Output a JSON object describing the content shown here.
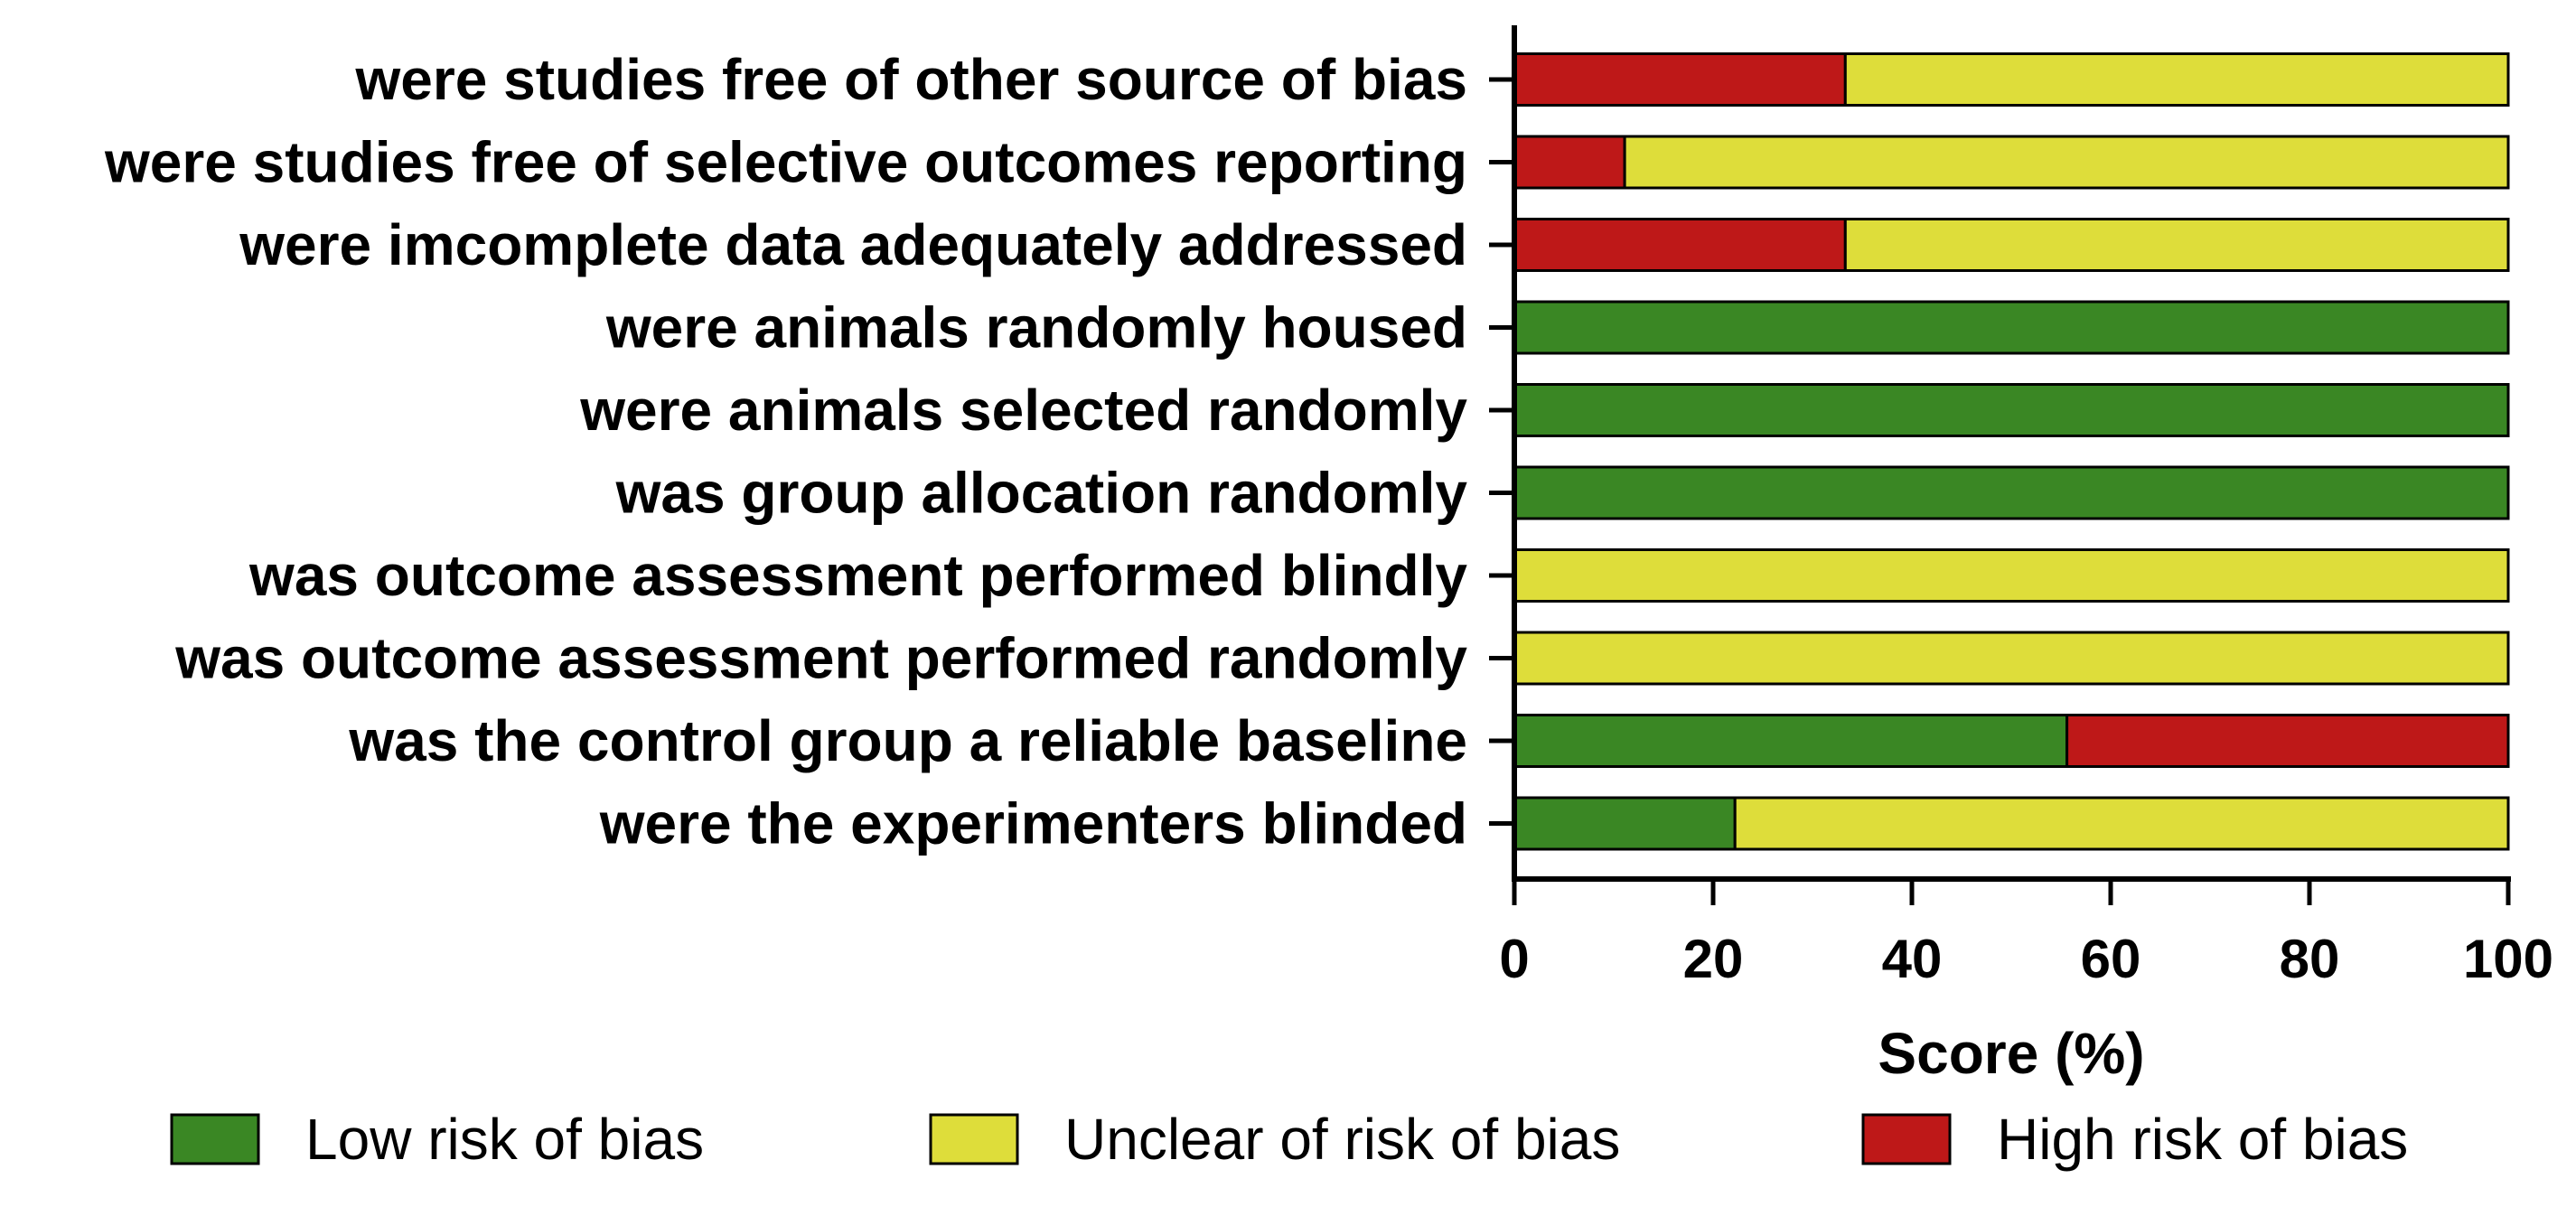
{
  "chart_data": {
    "type": "bar",
    "orientation": "horizontal",
    "stacked": true,
    "title": "",
    "xlabel": "Score (%)",
    "ylabel": "",
    "xlim": [
      0,
      100
    ],
    "xticks": [
      "0",
      "20",
      "40",
      "60",
      "80",
      "100"
    ],
    "categories": [
      "were studies free of other source of bias",
      "were studies free of selective outcomes reporting",
      "were imcomplete data adequately addressed",
      "were animals randomly housed",
      "were animals selected randomly",
      "was group allocation randomly",
      "was outcome assessment performed blindly",
      "was outcome assessment performed randomly",
      "was the control group a reliable baseline",
      "were the experimenters blinded"
    ],
    "series": [
      {
        "name": "Low risk of bias",
        "color": "#3a8724",
        "values": [
          0,
          0,
          0,
          100,
          100,
          100,
          0,
          0,
          55.6,
          22.2
        ]
      },
      {
        "name": "High risk of bias",
        "color": "#be1818",
        "values": [
          33.3,
          11.1,
          33.3,
          0,
          0,
          0,
          0,
          0,
          44.4,
          0
        ]
      },
      {
        "name": "Unclear of risk of bias",
        "color": "#dedd3a",
        "values": [
          66.7,
          88.9,
          66.7,
          0,
          0,
          0,
          100,
          100,
          0,
          77.8
        ]
      }
    ],
    "legend": {
      "position": "bottom",
      "items": [
        {
          "label": "Low risk of bias",
          "color": "#3a8724"
        },
        {
          "label": "Unclear of risk of bias",
          "color": "#dedd3a"
        },
        {
          "label": "High risk of bias",
          "color": "#be1818"
        }
      ]
    }
  }
}
